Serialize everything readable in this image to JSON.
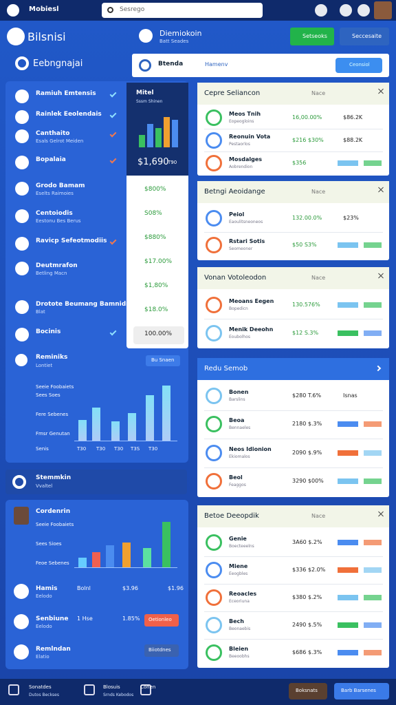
{
  "topbar": {
    "brand": "Mobiesl",
    "search": "Sesrego"
  },
  "sidebar": {
    "title": "Bilsnisi",
    "subtitle": "Eebngnajai",
    "items": [
      {
        "title": "Ramiuh Emtensis"
      },
      {
        "title": "Rainlek Eeolendais"
      },
      {
        "title": "Canthaito",
        "sub": "Esals Gelrot Meiden"
      },
      {
        "title": "Bopalaia"
      },
      {
        "title": "Grodo Bamam",
        "sub": "Eselts Raimoies"
      },
      {
        "title": "Centoiodis",
        "sub": "Eestonu Bes Berus"
      },
      {
        "title": "Ravicp Sefeotmodiis"
      },
      {
        "title": "Deutmrafon",
        "sub": "Betling Macn"
      },
      {
        "title": "Drotote Beumang Bamnidn",
        "sub": "Blat"
      },
      {
        "title": "Bocinis"
      }
    ],
    "chart": {
      "title": "Reminiks",
      "sub": "Lontiet",
      "button": "Bu Snaen",
      "labels": [
        "Seeie Foobaiets",
        "Sees Soes",
        "Fere Sebenes",
        "Fmsr Genutan",
        "Senis"
      ],
      "x_labels": [
        "T30",
        "T30",
        "T30",
        "T3S",
        "T30"
      ]
    },
    "section": {
      "title": "Stemmkin",
      "sub": "Vvaltel"
    },
    "card": {
      "title": "Cordenrin",
      "labels": [
        "Seeie Foobaiets",
        "Sees Sioes",
        "Feoe Sebenes"
      ],
      "rows": [
        {
          "title": "Hamis",
          "sub": "Eelodo",
          "cols": [
            "Bolnl",
            "$3.96",
            "$1.96"
          ]
        },
        {
          "title": "Senbiune",
          "sub": "Eelodo",
          "cols": [
            "1 Hse",
            "1.85%"
          ],
          "button": "Oetionleo"
        },
        {
          "title": "Remlndan",
          "sub": "Elatio",
          "button": "Biiotdnes"
        }
      ]
    }
  },
  "panel": {
    "title": "Mitel",
    "sub": "Sssm Shinen",
    "amount": "$1,690",
    "amount_sub": "T90",
    "values": [
      "$800%",
      "S08%",
      "$880%",
      "$17.00%",
      "$1,80%",
      "$18.0%",
      "100.00%"
    ]
  },
  "main": {
    "title": "Diemiokoin",
    "sub": "Batt Seades",
    "buttons": [
      "Setseoks",
      "Seccesaite"
    ],
    "tabs": {
      "left": "Btenda",
      "mid": "Hamenv",
      "pill": "Ceonsiol"
    },
    "cards": [
      {
        "title": "Cepre Seliancon",
        "tag": "Nace",
        "rows": [
          {
            "title": "Meos Tnih",
            "sub": "Eopeogloins",
            "a": "16,00.00%",
            "b": "$86.2K"
          },
          {
            "title": "Reonuin Vota",
            "sub": "Pestaorlos",
            "a": "$216 $30%",
            "b": "$88.2K"
          },
          {
            "title": "Mosdalges",
            "sub": "Aobrendion",
            "a": "$356"
          }
        ]
      },
      {
        "title": "Betngi Aeoidange",
        "tag": "Nace",
        "rows": [
          {
            "title": "Peiol",
            "sub": "Eaoulitsneoneos",
            "a": "132.00.0%",
            "b": "$23%"
          },
          {
            "title": "Rstari Sotis",
            "sub": "Seomeoner",
            "a": "$50 S3%"
          }
        ]
      },
      {
        "title": "Vonan Votoleodon",
        "tag": "Nace",
        "rows": [
          {
            "title": "Meoans Eegen",
            "sub": "Bopedicn",
            "a": "130.576%"
          },
          {
            "title": "Menik Deeohn",
            "sub": "Eoubolhos",
            "a": "$12 S.3%"
          }
        ]
      },
      {
        "title": "Redu Semob",
        "rows": [
          {
            "title": "Bonen",
            "sub": "Barslins",
            "a": "$280 T.6%",
            "b": "Isnas"
          },
          {
            "title": "Beoa",
            "sub": "Bennaeles",
            "a": "2180 $.3%"
          },
          {
            "title": "Neos Idionion",
            "sub": "Ekiomalos",
            "a": "2090 $.9%"
          },
          {
            "title": "Beol",
            "sub": "Feaggos",
            "a": "3290 $00%"
          }
        ]
      },
      {
        "title": "Betoe Deeopdik",
        "tag": "Nace",
        "rows": [
          {
            "title": "Genie",
            "sub": "Boecteeelns",
            "a": "3A60 $.2%"
          },
          {
            "title": "Miene",
            "sub": "Eeogbles",
            "a": "$336 $2.0%"
          },
          {
            "title": "Reoacles",
            "sub": "Eceoriuna",
            "a": "$380 $.2%"
          },
          {
            "title": "Bech",
            "sub": "Beonaebis",
            "a": "2490 $.5%"
          },
          {
            "title": "Bleien",
            "sub": "Beeoobhs",
            "a": "$686 $.3%"
          }
        ]
      }
    ]
  },
  "bottombar": {
    "items": [
      {
        "title": "Sonatdes",
        "sub": "Dutos Beckses"
      },
      {
        "title": "Blosuis",
        "sub": "Srnds Kebodos"
      },
      {
        "title": "Conen"
      }
    ],
    "buttons": [
      "Boksnats",
      "Barb Barsenes"
    ]
  }
}
